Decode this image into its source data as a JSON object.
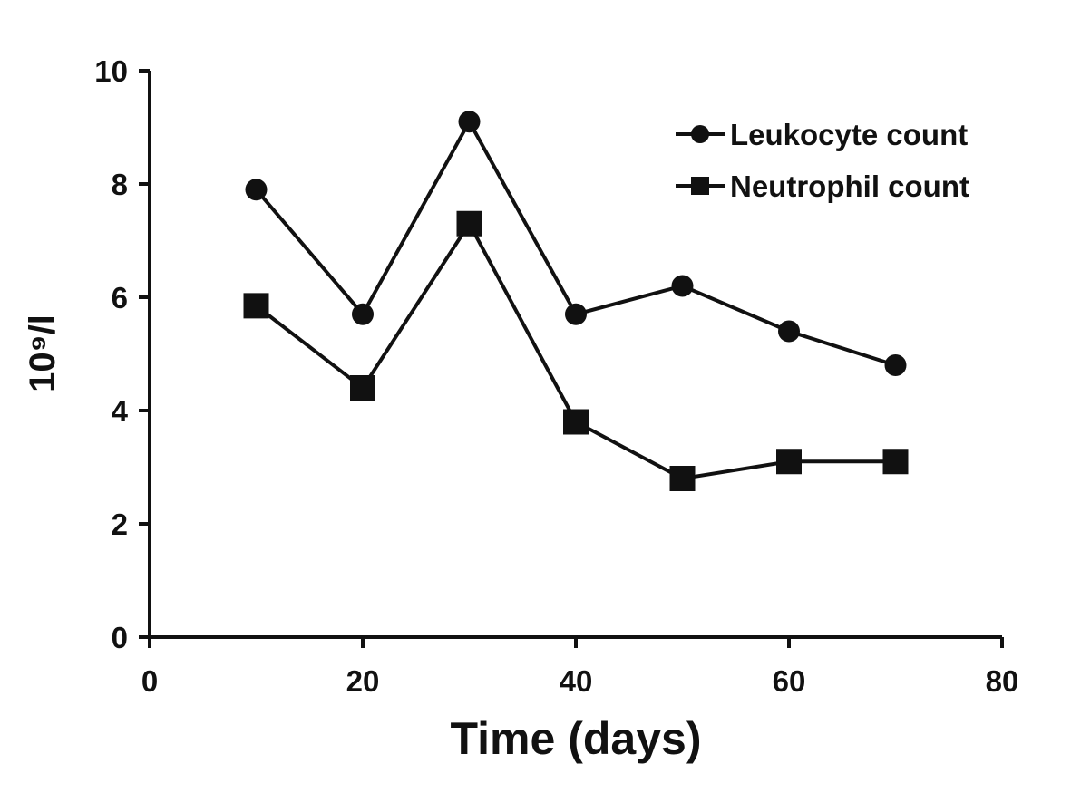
{
  "chart_data": {
    "type": "line",
    "xlabel": "Time (days)",
    "ylabel": "10⁹/l",
    "xlim": [
      0,
      80
    ],
    "ylim": [
      0,
      10
    ],
    "x_ticks": [
      "0",
      "20",
      "40",
      "60",
      "80"
    ],
    "y_ticks": [
      "0",
      "2",
      "4",
      "6",
      "8",
      "10"
    ],
    "grid": false,
    "legend_position": "top-right",
    "x": [
      10,
      20,
      30,
      40,
      50,
      60,
      70
    ],
    "series": [
      {
        "name": "Leukocyte count",
        "marker": "circle",
        "values": [
          7.9,
          5.7,
          9.1,
          5.7,
          6.2,
          5.4,
          4.8
        ]
      },
      {
        "name": "Neutrophil count",
        "marker": "square",
        "values": [
          5.85,
          4.4,
          7.3,
          3.8,
          2.8,
          3.1,
          3.1
        ]
      }
    ]
  }
}
